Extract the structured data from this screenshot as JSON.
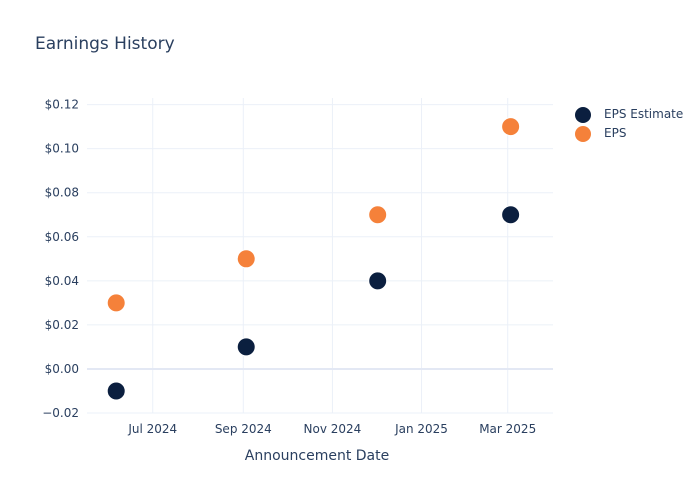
{
  "chart_data": {
    "type": "scatter",
    "title": "Earnings History",
    "xlabel": "Announcement Date",
    "ylabel": "",
    "x_ticks": [
      "2024-07-01",
      "2024-09-01",
      "2024-11-01",
      "2025-01-01",
      "2025-03-01"
    ],
    "x_tick_labels": [
      "Jul 2024",
      "Sep 2024",
      "Nov 2024",
      "Jan 2025",
      "Mar 2025"
    ],
    "xlim": [
      "2024-05-17",
      "2025-04-01"
    ],
    "y_ticks": [
      -0.02,
      0,
      0.02,
      0.04,
      0.06,
      0.08,
      0.1,
      0.12
    ],
    "y_tick_labels": [
      "−0.02",
      "$0.00",
      "$0.02",
      "$0.04",
      "$0.06",
      "$0.08",
      "$0.10",
      "$0.12"
    ],
    "ylim": [
      -0.02,
      0.123
    ],
    "grid": true,
    "legend_position": "top-right",
    "x": [
      "2024-06-06",
      "2024-09-03",
      "2024-12-02",
      "2025-03-03"
    ],
    "series": [
      {
        "name": "EPS Estimate",
        "color": "#0b1f3f",
        "values": [
          -0.01,
          0.01,
          0.04,
          0.07
        ]
      },
      {
        "name": "EPS",
        "color": "#f5813a",
        "values": [
          0.03,
          0.05,
          0.07,
          0.11
        ]
      }
    ]
  }
}
